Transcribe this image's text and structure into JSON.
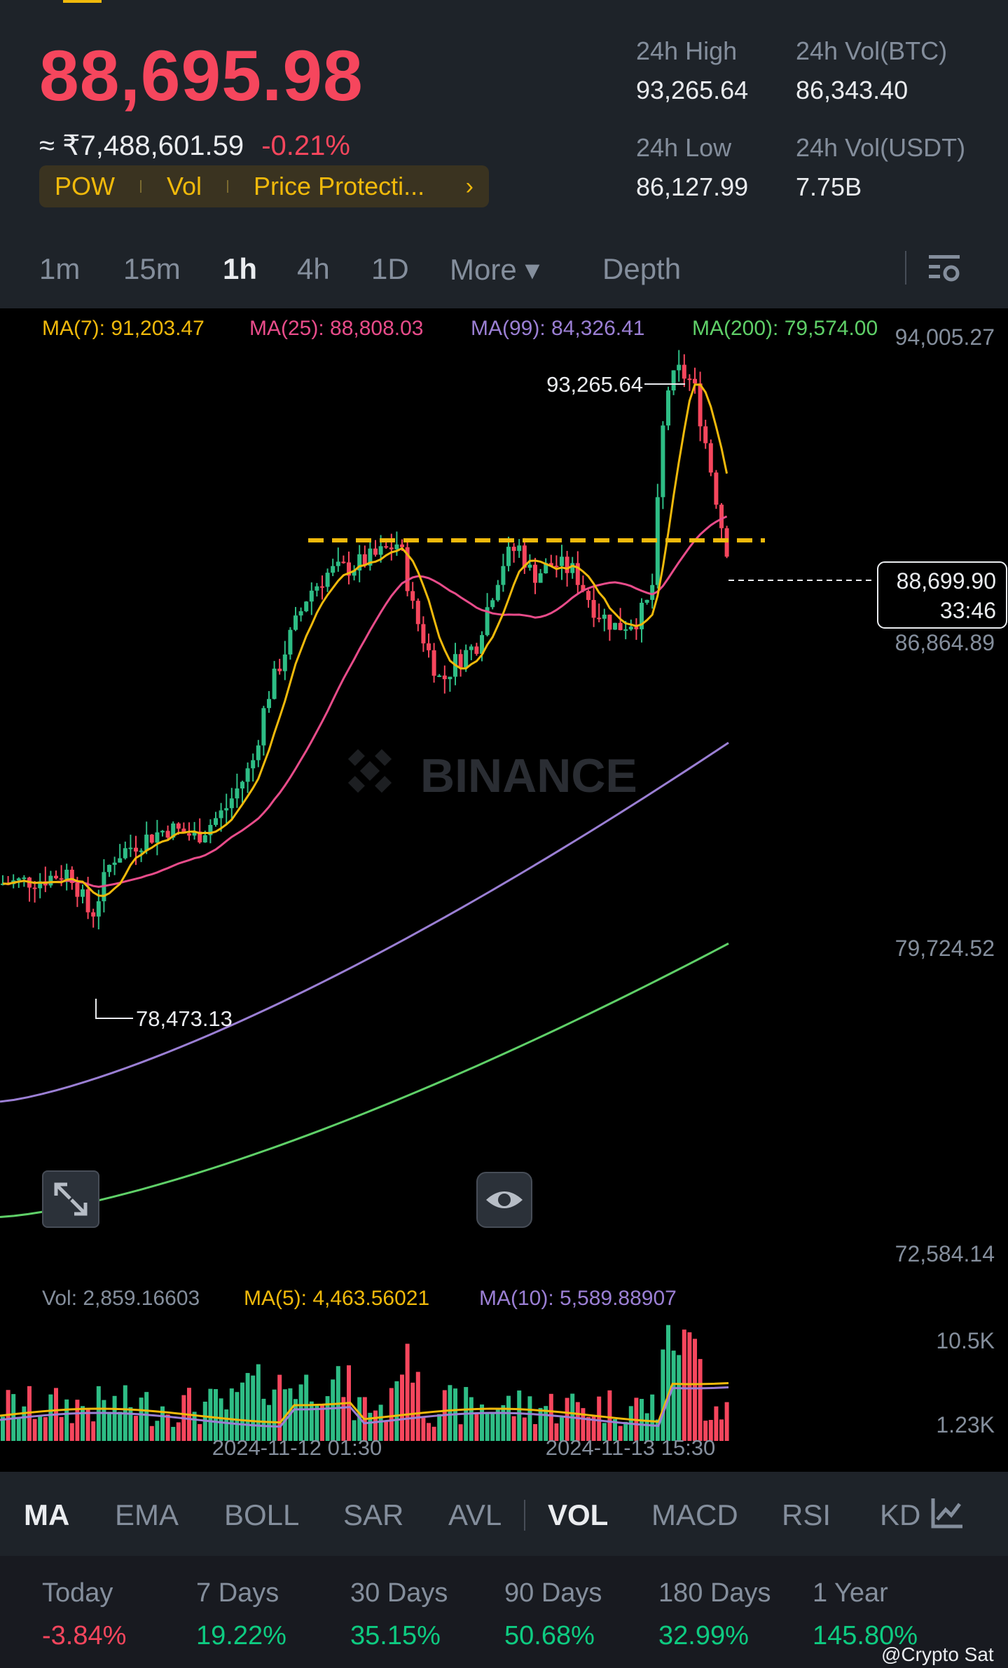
{
  "header": {
    "price": "88,695.98",
    "fiat_price": "≈ ₹7,488,601.59",
    "change": "-0.21%",
    "tags": [
      "POW",
      "Vol",
      "Price Protecti..."
    ],
    "tags_arrow": "›",
    "stats": [
      {
        "label": "24h High",
        "value": "93,265.64"
      },
      {
        "label": "24h Vol(BTC)",
        "value": "86,343.40"
      },
      {
        "label": "24h Low",
        "value": "86,127.99"
      },
      {
        "label": "24h Vol(USDT)",
        "value": "7.75B"
      }
    ]
  },
  "timeframes": {
    "items": [
      "1m",
      "15m",
      "1h",
      "4h",
      "1D",
      "More ▾",
      "Depth"
    ],
    "active": "1h",
    "settings_icon": "chart-settings-icon"
  },
  "chart": {
    "ma_legend": [
      {
        "label": "MA(7): 91,203.47",
        "color": "#f0b90b"
      },
      {
        "label": "MA(25): 88,808.03",
        "color": "#e84c8a"
      },
      {
        "label": "MA(99): 84,326.41",
        "color": "#9b7fd4"
      },
      {
        "label": "MA(200): 79,574.00",
        "color": "#5fd068"
      }
    ],
    "price_axis": [
      "94,005.27",
      "86,864.89",
      "79,724.52",
      "72,584.14"
    ],
    "high_label": "93,265.64",
    "low_label": "78,473.13",
    "current_price_tag": "88,699.90",
    "countdown": "33:46",
    "watermark": "BINANCE",
    "vol_legend": [
      {
        "label": "Vol: 2,859.16603",
        "color": "#848e9c"
      },
      {
        "label": "MA(5): 4,463.56021",
        "color": "#f0b90b"
      },
      {
        "label": "MA(10): 5,589.88907",
        "color": "#9b7fd4"
      }
    ],
    "vol_axis": [
      "10.5K",
      "1.23K"
    ],
    "time_axis": [
      "2024-11-12 01:30",
      "2024-11-13 15:30"
    ],
    "colors": {
      "up": "#2ebd85",
      "down": "#f6465d",
      "resistance": "#f0b90b"
    }
  },
  "indicators": {
    "items": [
      "MA",
      "EMA",
      "BOLL",
      "SAR",
      "AVL",
      "VOL",
      "MACD",
      "RSI",
      "KD"
    ],
    "active": [
      "MA",
      "VOL"
    ]
  },
  "performance": [
    {
      "label": "Today",
      "value": "-3.84%",
      "dir": "neg"
    },
    {
      "label": "7 Days",
      "value": "19.22%",
      "dir": "pos"
    },
    {
      "label": "30 Days",
      "value": "35.15%",
      "dir": "pos"
    },
    {
      "label": "90 Days",
      "value": "50.68%",
      "dir": "pos"
    },
    {
      "label": "180 Days",
      "value": "32.99%",
      "dir": "pos"
    },
    {
      "label": "1 Year",
      "value": "145.80%",
      "dir": "pos"
    }
  ],
  "credit": "@Crypto Sat"
}
